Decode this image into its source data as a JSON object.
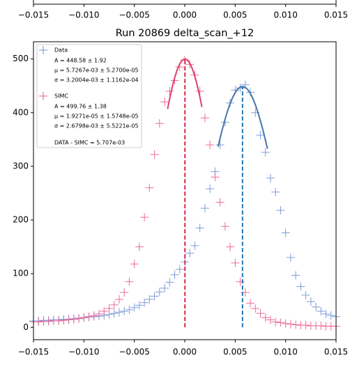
{
  "chart_data": {
    "type": "scatter",
    "title": "Run 20869 delta_scan_+12",
    "x": [
      -0.015,
      -0.0145,
      -0.014,
      -0.0135,
      -0.013,
      -0.0125,
      -0.012,
      -0.0115,
      -0.011,
      -0.0105,
      -0.01,
      -0.0095,
      -0.009,
      -0.0085,
      -0.008,
      -0.0075,
      -0.007,
      -0.0065,
      -0.006,
      -0.0055,
      -0.005,
      -0.0045,
      -0.004,
      -0.0035,
      -0.003,
      -0.0025,
      -0.002,
      -0.0015,
      -0.001,
      -0.0005,
      0,
      0.0005,
      0.001,
      0.0015,
      0.002,
      0.0025,
      0.003,
      0.0035,
      0.004,
      0.0045,
      0.005,
      0.0055,
      0.006,
      0.0065,
      0.007,
      0.0075,
      0.008,
      0.0085,
      0.009,
      0.0095,
      0.01,
      0.0105,
      0.011,
      0.0115,
      0.012,
      0.0125,
      0.013,
      0.0135,
      0.014,
      0.0145,
      0.015
    ],
    "series": [
      {
        "name": "Data",
        "color": "#7090d4",
        "fit_color": "#4a74aa",
        "line_color": "#1f77b4",
        "values": [
          12,
          12,
          13,
          13,
          14,
          14,
          15,
          15,
          16,
          17,
          18,
          19,
          20,
          21,
          22,
          24,
          26,
          28,
          30,
          33,
          37,
          41,
          46,
          52,
          58,
          66,
          73,
          84,
          98,
          108,
          122,
          138,
          152,
          185,
          222,
          258,
          290,
          340,
          382,
          418,
          442,
          446,
          452,
          438,
          400,
          358,
          326,
          278,
          252,
          218,
          176,
          130,
          97,
          76,
          60,
          48,
          38,
          30,
          25,
          22,
          20
        ],
        "fit": {
          "A": 448.58,
          "mu": 0.0057267,
          "sigma": 0.0032004,
          "xlim": [
            0.0033,
            0.0082
          ],
          "labels": [
            "A = 448.58 ± 1.92",
            "μ = 5.7267e-03 ± 5.2700e-05",
            "σ = 3.2004e-03 ± 1.1162e-04"
          ]
        }
      },
      {
        "name": "SIMC",
        "color": "#ec5a90",
        "fit_color": "#dc4070",
        "line_color": "#d62746",
        "values": [
          10,
          10,
          11,
          11,
          12,
          12,
          13,
          14,
          15,
          16,
          18,
          20,
          22,
          25,
          30,
          35,
          42,
          52,
          65,
          85,
          118,
          150,
          205,
          260,
          322,
          380,
          420,
          440,
          460,
          485,
          498,
          490,
          470,
          440,
          390,
          340,
          280,
          233,
          188,
          150,
          120,
          85,
          65,
          45,
          35,
          26,
          18,
          14,
          10,
          9,
          7,
          6,
          5,
          4,
          4,
          3,
          3,
          3,
          2,
          2,
          2
        ],
        "fit": {
          "A": 499.76,
          "mu": 1.9271e-05,
          "sigma": 0.0026798,
          "xlim": [
            -0.0017,
            0.0017
          ],
          "labels": [
            "A = 499.76 ± 1.38",
            "μ = 1.9271e-05 ± 1.5748e-05",
            "σ = 2.6798e-03 ± 5.5221e-05"
          ]
        }
      }
    ],
    "annotation": "DATA - SIMC = 5.707e-03",
    "xlim": [
      -0.015,
      0.015
    ],
    "xticks": [
      {
        "value": -0.015,
        "label": "−0.015"
      },
      {
        "value": -0.01,
        "label": "−0.010"
      },
      {
        "value": -0.005,
        "label": "−0.005"
      },
      {
        "value": 0,
        "label": "0.000"
      },
      {
        "value": 0.005,
        "label": "0.005"
      },
      {
        "value": 0.01,
        "label": "0.010"
      },
      {
        "value": 0.015,
        "label": "0.015"
      }
    ],
    "ylim": [
      -23,
      532
    ],
    "yticks": [
      0,
      100,
      200,
      300,
      400,
      500
    ],
    "legend": "upper left"
  }
}
